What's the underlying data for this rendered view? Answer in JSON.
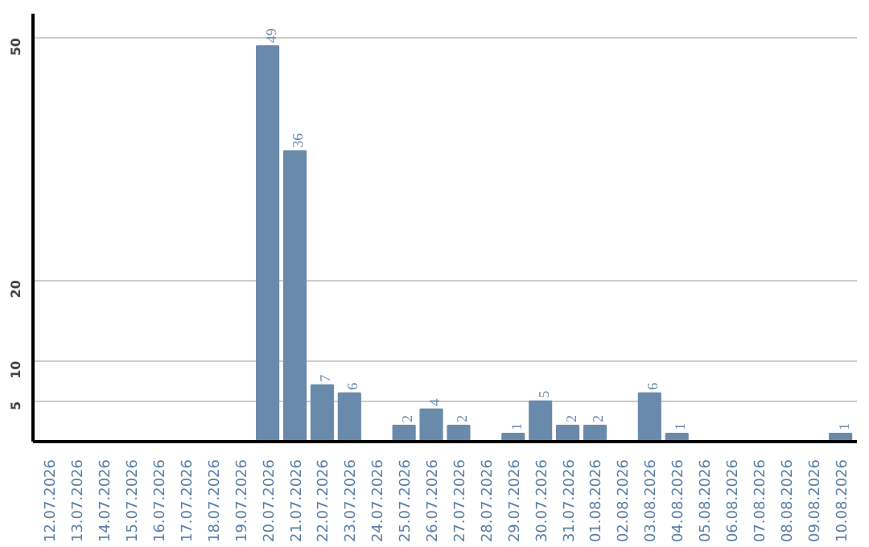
{
  "chart_data": {
    "type": "bar",
    "categories": [
      "12.07.2026",
      "13.07.2026",
      "14.07.2026",
      "15.07.2026",
      "16.07.2026",
      "17.07.2026",
      "18.07.2026",
      "19.07.2026",
      "20.07.2026",
      "21.07.2026",
      "22.07.2026",
      "23.07.2026",
      "24.07.2026",
      "25.07.2026",
      "26.07.2026",
      "27.07.2026",
      "28.07.2026",
      "29.07.2026",
      "30.07.2026",
      "31.07.2026",
      "01.08.2026",
      "02.08.2026",
      "03.08.2026",
      "04.08.2026",
      "05.08.2026",
      "06.08.2026",
      "07.08.2026",
      "08.08.2026",
      "09.08.2026",
      "10.08.2026"
    ],
    "values": [
      0,
      0,
      0,
      0,
      0,
      0,
      0,
      0,
      49,
      36,
      7,
      6,
      0,
      2,
      4,
      2,
      0,
      1,
      5,
      2,
      2,
      0,
      6,
      1,
      0,
      0,
      0,
      0,
      0,
      1
    ],
    "value_labels": [
      null,
      null,
      null,
      null,
      null,
      null,
      null,
      null,
      "49",
      "36",
      "7",
      "6",
      null,
      "2",
      "4",
      "2",
      null,
      "1",
      "5",
      "2",
      "2",
      null,
      "6",
      "1",
      null,
      null,
      null,
      null,
      null,
      "1"
    ],
    "color": "#6a8aab",
    "ylim": [
      0,
      53
    ],
    "yticks": [
      5,
      10,
      20,
      50
    ],
    "grid": "y"
  }
}
